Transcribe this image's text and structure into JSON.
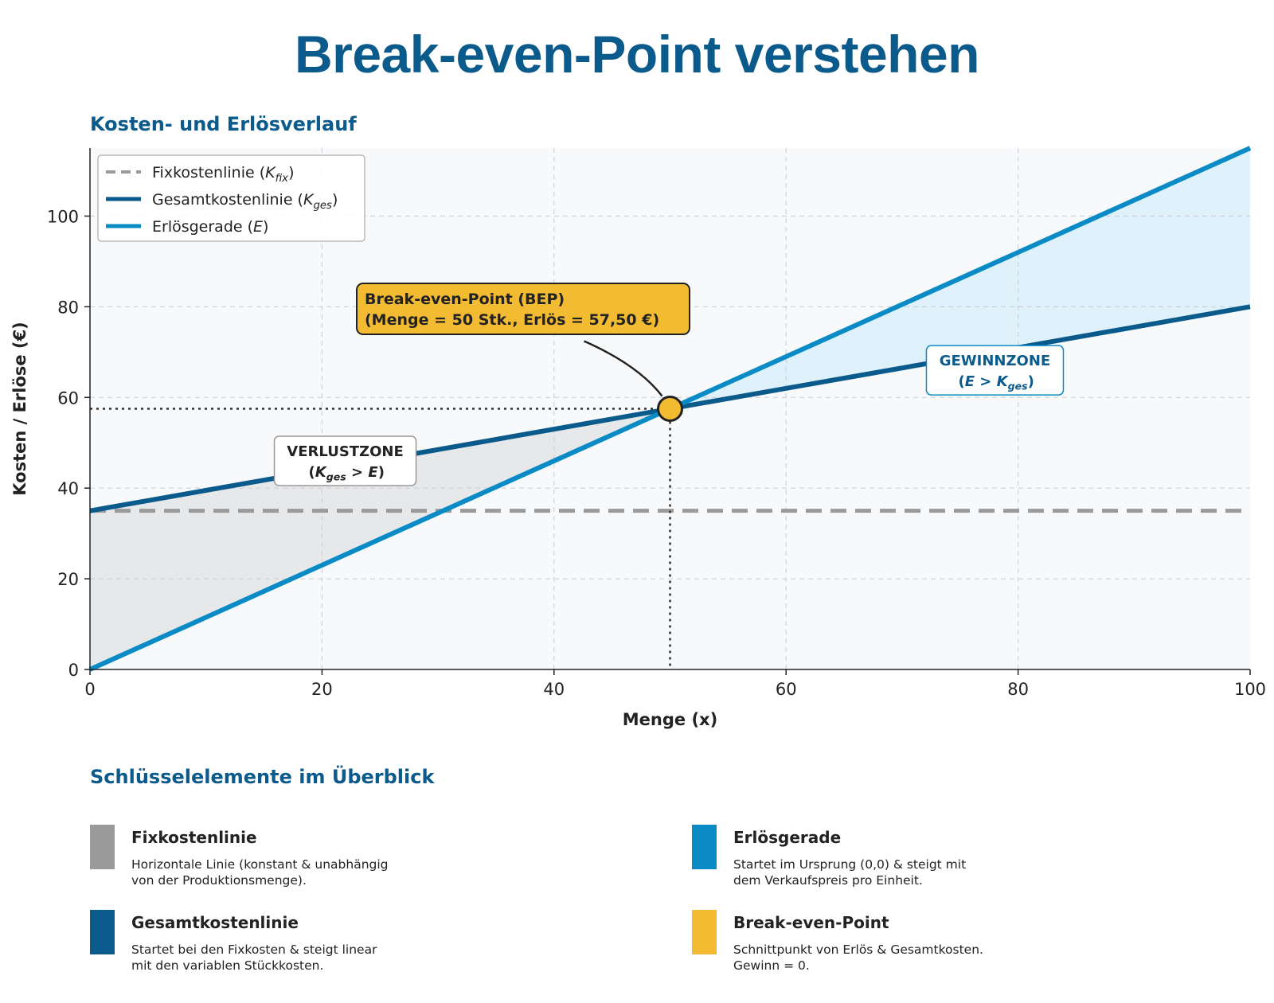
{
  "page": {
    "title": "Break-even-Point verstehen",
    "chart_section_title": "Kosten- und Erlösverlauf",
    "overview_title": "Schlüsselelemente im Überblick"
  },
  "colors": {
    "fixed": "#9a9a9a",
    "total": "#0b5a8c",
    "revenue": "#0a8bc6",
    "bep": "#f3bb32",
    "loss_fill": "#e6e8ea",
    "profit_fill": "#dff1fa",
    "plot_bg": "#f7f9fb"
  },
  "chart_data": {
    "type": "line",
    "xlabel": "Menge (x)",
    "ylabel": "Kosten / Erlöse (€)",
    "xlim": [
      0,
      100
    ],
    "ylim": [
      0,
      115
    ],
    "xticks": [
      0,
      20,
      40,
      60,
      80,
      100
    ],
    "yticks": [
      0,
      20,
      40,
      60,
      80,
      100
    ],
    "grid": true,
    "legend_position": "top-left",
    "series": [
      {
        "name": "Fixkostenlinie (K_fix)",
        "label_main": "Fixkostenlinie (",
        "label_var": "K",
        "label_sub": "fix",
        "label_end": ")",
        "style": "dashed",
        "x": [
          0,
          100
        ],
        "y": [
          35,
          35
        ]
      },
      {
        "name": "Gesamtkostenlinie (K_ges)",
        "label_main": "Gesamtkostenlinie (",
        "label_var": "K",
        "label_sub": "ges",
        "label_end": ")",
        "style": "solid",
        "x": [
          0,
          100
        ],
        "y": [
          35,
          80
        ]
      },
      {
        "name": "Erlösgerade (E)",
        "label_main": "Erlösgerade (",
        "label_var": "E",
        "label_sub": "",
        "label_end": ")",
        "style": "solid",
        "x": [
          0,
          100
        ],
        "y": [
          0,
          115
        ]
      }
    ],
    "break_even": {
      "x": 50,
      "y": 57.5,
      "label_line1": "Break-even-Point (BEP)",
      "label_line2": "(Menge = 50 Stk., Erlös = 57,50 €)"
    },
    "zones": {
      "loss": {
        "label": "VERLUSTZONE",
        "condition": "(K_ges > E)",
        "x": 22,
        "y": 46
      },
      "profit": {
        "label": "GEWINNZONE",
        "condition": "(E > K_ges)",
        "x": 78,
        "y": 66
      }
    }
  },
  "cards": [
    {
      "key": "fixed",
      "title": "Fixkostenlinie",
      "desc_lines": [
        "Horizontale Linie (konstant & unabhängig",
        "von der Produktionsmenge)."
      ]
    },
    {
      "key": "revenue",
      "title": "Erlösgerade",
      "desc_lines": [
        "Startet im Ursprung (0,0) & steigt mit",
        "dem Verkaufspreis pro Einheit."
      ]
    },
    {
      "key": "total",
      "title": "Gesamtkostenlinie",
      "desc_lines": [
        "Startet bei den Fixkosten & steigt linear",
        "mit den variablen Stückkosten."
      ]
    },
    {
      "key": "bep",
      "title": "Break-even-Point",
      "desc_lines": [
        "Schnittpunkt von Erlös & Gesamtkosten.",
        "Gewinn = 0."
      ]
    }
  ]
}
